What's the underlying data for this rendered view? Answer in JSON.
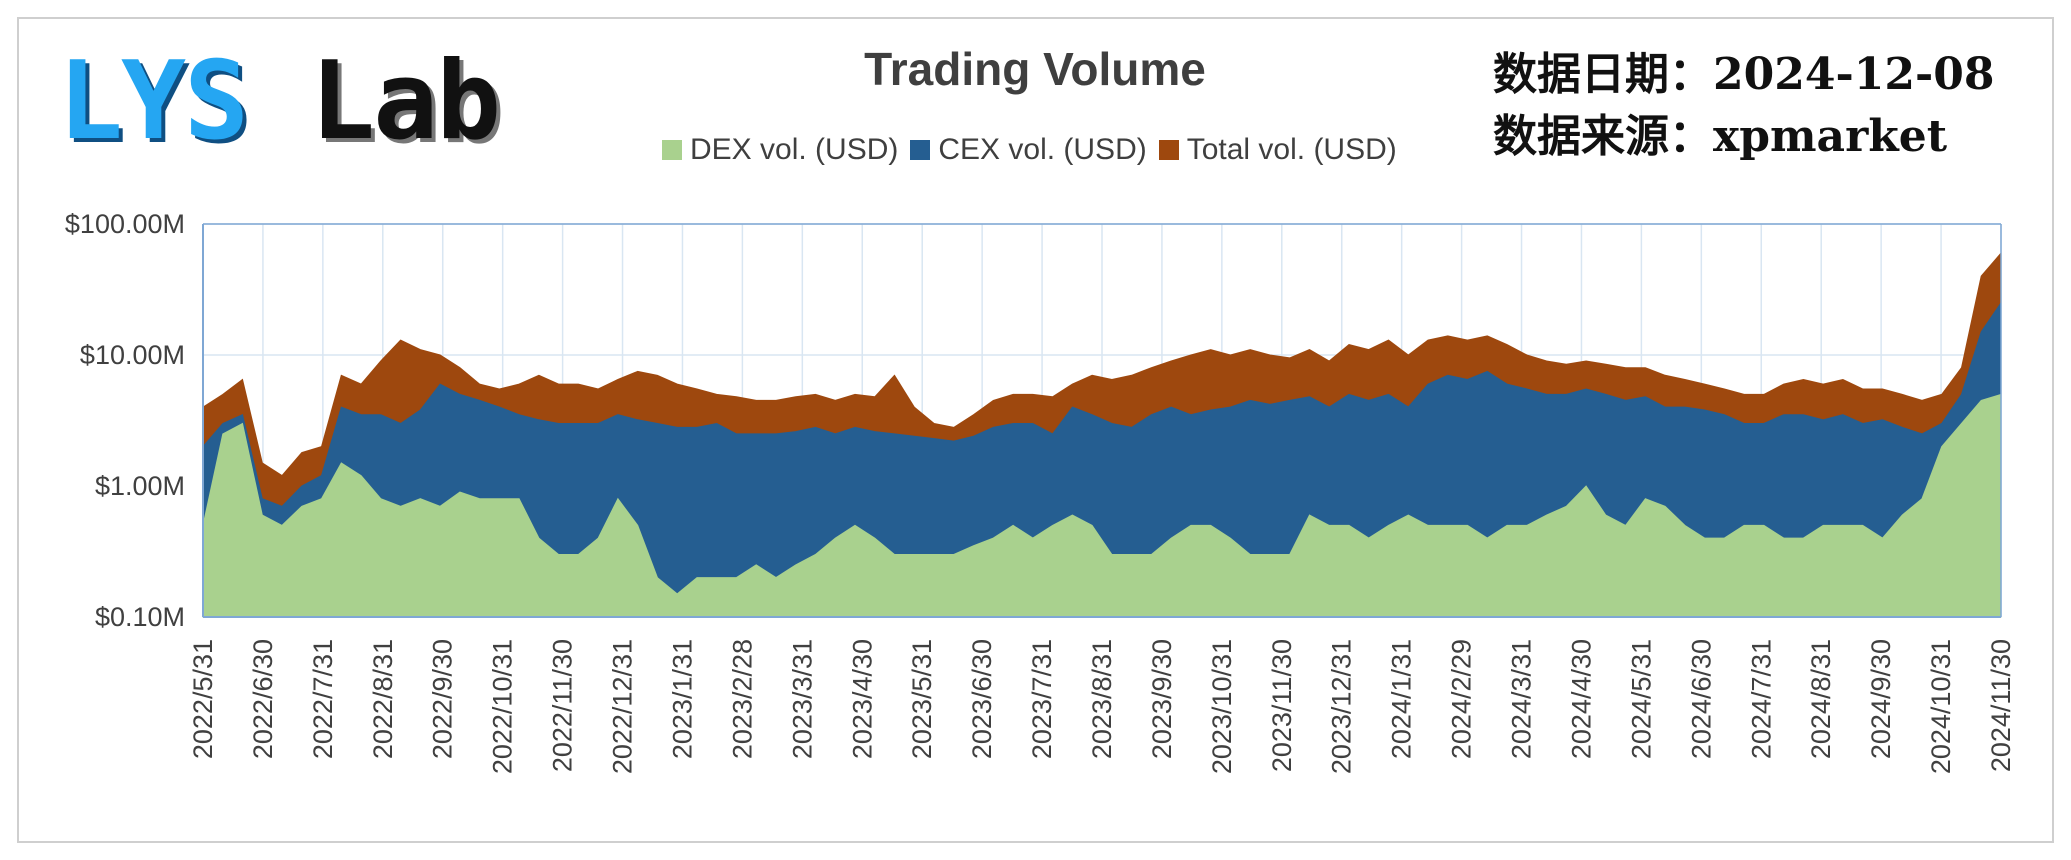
{
  "logo": {
    "part1": "LYS",
    "part2": "Lab"
  },
  "info": {
    "date_line": "数据日期：2024-12-08",
    "source_line": "数据来源：xpmarket"
  },
  "colors": {
    "dex": "#a9d18e",
    "cex": "#255e91",
    "total": "#9e480e",
    "grid": "#d9e6f2",
    "axis": "#7fa7d4"
  },
  "chart_data": {
    "type": "area",
    "title": "Trading Volume",
    "y_scale": "log",
    "ylim": [
      0.1,
      100
    ],
    "y_ticks": [
      {
        "value": 100,
        "label": "$100.00M"
      },
      {
        "value": 10,
        "label": "$10.00M"
      },
      {
        "value": 1,
        "label": "$1.00M"
      },
      {
        "value": 0.1,
        "label": "$0.10M"
      }
    ],
    "x_labels": [
      "2022/5/31",
      "2022/6/30",
      "2022/7/31",
      "2022/8/31",
      "2022/9/30",
      "2022/10/31",
      "2022/11/30",
      "2022/12/31",
      "2023/1/31",
      "2023/2/28",
      "2023/3/31",
      "2023/4/30",
      "2023/5/31",
      "2023/6/30",
      "2023/7/31",
      "2023/8/31",
      "2023/9/30",
      "2023/10/31",
      "2023/11/30",
      "2023/12/31",
      "2024/1/31",
      "2024/2/29",
      "2024/3/31",
      "2024/4/30",
      "2024/5/31",
      "2024/6/30",
      "2024/7/31",
      "2024/8/31",
      "2024/9/30",
      "2024/10/31",
      "2024/11/30"
    ],
    "legend": [
      "DEX vol. (USD)",
      "CEX vol. (USD)",
      "Total vol. (USD)"
    ],
    "series": [
      {
        "name": "DEX vol. (USD)",
        "values": [
          0.5,
          2.5,
          3.0,
          0.6,
          0.5,
          0.7,
          0.8,
          1.5,
          1.2,
          0.8,
          0.7,
          0.8,
          0.7,
          0.9,
          0.8,
          0.8,
          0.8,
          0.4,
          0.3,
          0.3,
          0.4,
          0.8,
          0.5,
          0.2,
          0.15,
          0.2,
          0.2,
          0.2,
          0.25,
          0.2,
          0.25,
          0.3,
          0.4,
          0.5,
          0.4,
          0.3,
          0.3,
          0.3,
          0.3,
          0.35,
          0.4,
          0.5,
          0.4,
          0.5,
          0.6,
          0.5,
          0.3,
          0.3,
          0.3,
          0.4,
          0.5,
          0.5,
          0.4,
          0.3,
          0.3,
          0.3,
          0.6,
          0.5,
          0.5,
          0.4,
          0.5,
          0.6,
          0.5,
          0.5,
          0.5,
          0.4,
          0.5,
          0.5,
          0.6,
          0.7,
          1.0,
          0.6,
          0.5,
          0.8,
          0.7,
          0.5,
          0.4,
          0.4,
          0.5,
          0.5,
          0.4,
          0.4,
          0.5,
          0.5,
          0.5,
          0.4,
          0.6,
          0.8,
          2.0,
          3.0,
          4.5,
          5.0
        ]
      },
      {
        "name": "CEX vol. (USD)",
        "values": [
          2.0,
          3.0,
          3.5,
          0.8,
          0.7,
          1.0,
          1.2,
          4.0,
          3.5,
          3.5,
          3.0,
          3.8,
          6.0,
          5.0,
          4.5,
          4.0,
          3.5,
          3.2,
          3.0,
          3.0,
          3.0,
          3.5,
          3.2,
          3.0,
          2.8,
          2.8,
          3.0,
          2.5,
          2.5,
          2.5,
          2.6,
          2.8,
          2.5,
          2.8,
          2.6,
          2.5,
          2.4,
          2.3,
          2.2,
          2.4,
          2.8,
          3.0,
          3.0,
          2.5,
          4.0,
          3.5,
          3.0,
          2.8,
          3.5,
          4.0,
          3.5,
          3.8,
          4.0,
          4.5,
          4.2,
          4.5,
          4.8,
          4.0,
          5.0,
          4.5,
          5.0,
          4.0,
          6.0,
          7.0,
          6.5,
          7.5,
          6.0,
          5.5,
          5.0,
          5.0,
          5.5,
          5.0,
          4.5,
          4.8,
          4.0,
          4.0,
          3.8,
          3.5,
          3.0,
          3.0,
          3.5,
          3.5,
          3.2,
          3.5,
          3.0,
          3.2,
          2.8,
          2.5,
          3.0,
          5.0,
          15.0,
          25.0
        ]
      },
      {
        "name": "Total vol. (USD)",
        "values": [
          4.0,
          5.0,
          6.5,
          1.5,
          1.2,
          1.8,
          2.0,
          7.0,
          6.0,
          9.0,
          13.0,
          11.0,
          10.0,
          8.0,
          6.0,
          5.5,
          6.0,
          7.0,
          6.0,
          6.0,
          5.5,
          6.5,
          7.5,
          7.0,
          6.0,
          5.5,
          5.0,
          4.8,
          4.5,
          4.5,
          4.8,
          5.0,
          4.5,
          5.0,
          4.8,
          7.0,
          4.0,
          3.0,
          2.8,
          3.5,
          4.5,
          5.0,
          5.0,
          4.8,
          6.0,
          7.0,
          6.5,
          7.0,
          8.0,
          9.0,
          10.0,
          11.0,
          10.0,
          11.0,
          10.0,
          9.5,
          11.0,
          9.0,
          12.0,
          11.0,
          13.0,
          10.0,
          13.0,
          14.0,
          13.0,
          14.0,
          12.0,
          10.0,
          9.0,
          8.5,
          9.0,
          8.5,
          8.0,
          8.0,
          7.0,
          6.5,
          6.0,
          5.5,
          5.0,
          5.0,
          6.0,
          6.5,
          6.0,
          6.5,
          5.5,
          5.5,
          5.0,
          4.5,
          5.0,
          8.0,
          40.0,
          60.0
        ]
      }
    ]
  }
}
